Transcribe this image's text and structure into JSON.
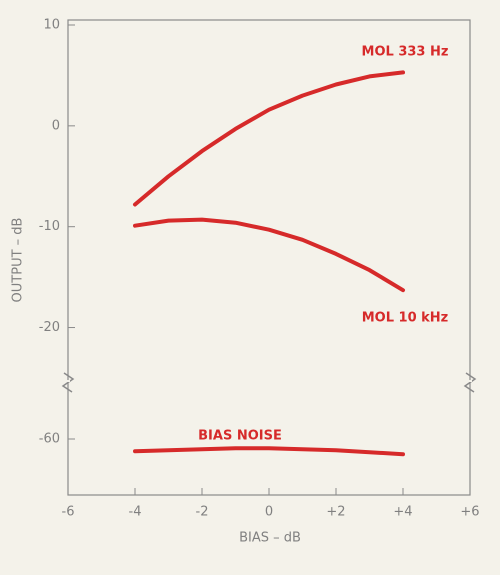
{
  "chart_data": {
    "type": "line",
    "xlabel": "BIAS – dB",
    "ylabel": "OUTPUT – dB",
    "x": [
      -4,
      -3,
      -2,
      -1,
      0,
      1,
      2,
      3,
      4
    ],
    "xlim": [
      -6,
      6
    ],
    "xticks": [
      -6,
      -4,
      -2,
      0,
      {
        "value": 2,
        "label": "+2"
      },
      {
        "value": 4,
        "label": "+4"
      },
      {
        "value": 6,
        "label": "+6"
      }
    ],
    "y_axis_segments": [
      {
        "ylim": [
          -25.5,
          10
        ],
        "yticks": [
          10,
          0,
          -10,
          -20
        ]
      },
      {
        "ylim": [
          -65.5,
          -54.5
        ],
        "yticks": [
          -60
        ]
      }
    ],
    "axis_break": true,
    "series": [
      {
        "name": "MOL 333 Hz",
        "color": "#d62a2a",
        "values": [
          -7.8,
          -5.0,
          -2.5,
          -0.3,
          1.6,
          3.0,
          4.1,
          4.9,
          5.3
        ]
      },
      {
        "name": "MOL 10 kHz",
        "color": "#d62a2a",
        "values": [
          -9.9,
          -9.4,
          -9.3,
          -9.6,
          -10.3,
          -11.3,
          -12.7,
          -14.3,
          -16.3
        ]
      },
      {
        "name": "BIAS NOISE",
        "color": "#d62a2a",
        "values": [
          -61.2,
          -61.1,
          -61.0,
          -60.9,
          -60.9,
          -61.0,
          -61.1,
          -61.3,
          -61.5
        ]
      }
    ]
  }
}
